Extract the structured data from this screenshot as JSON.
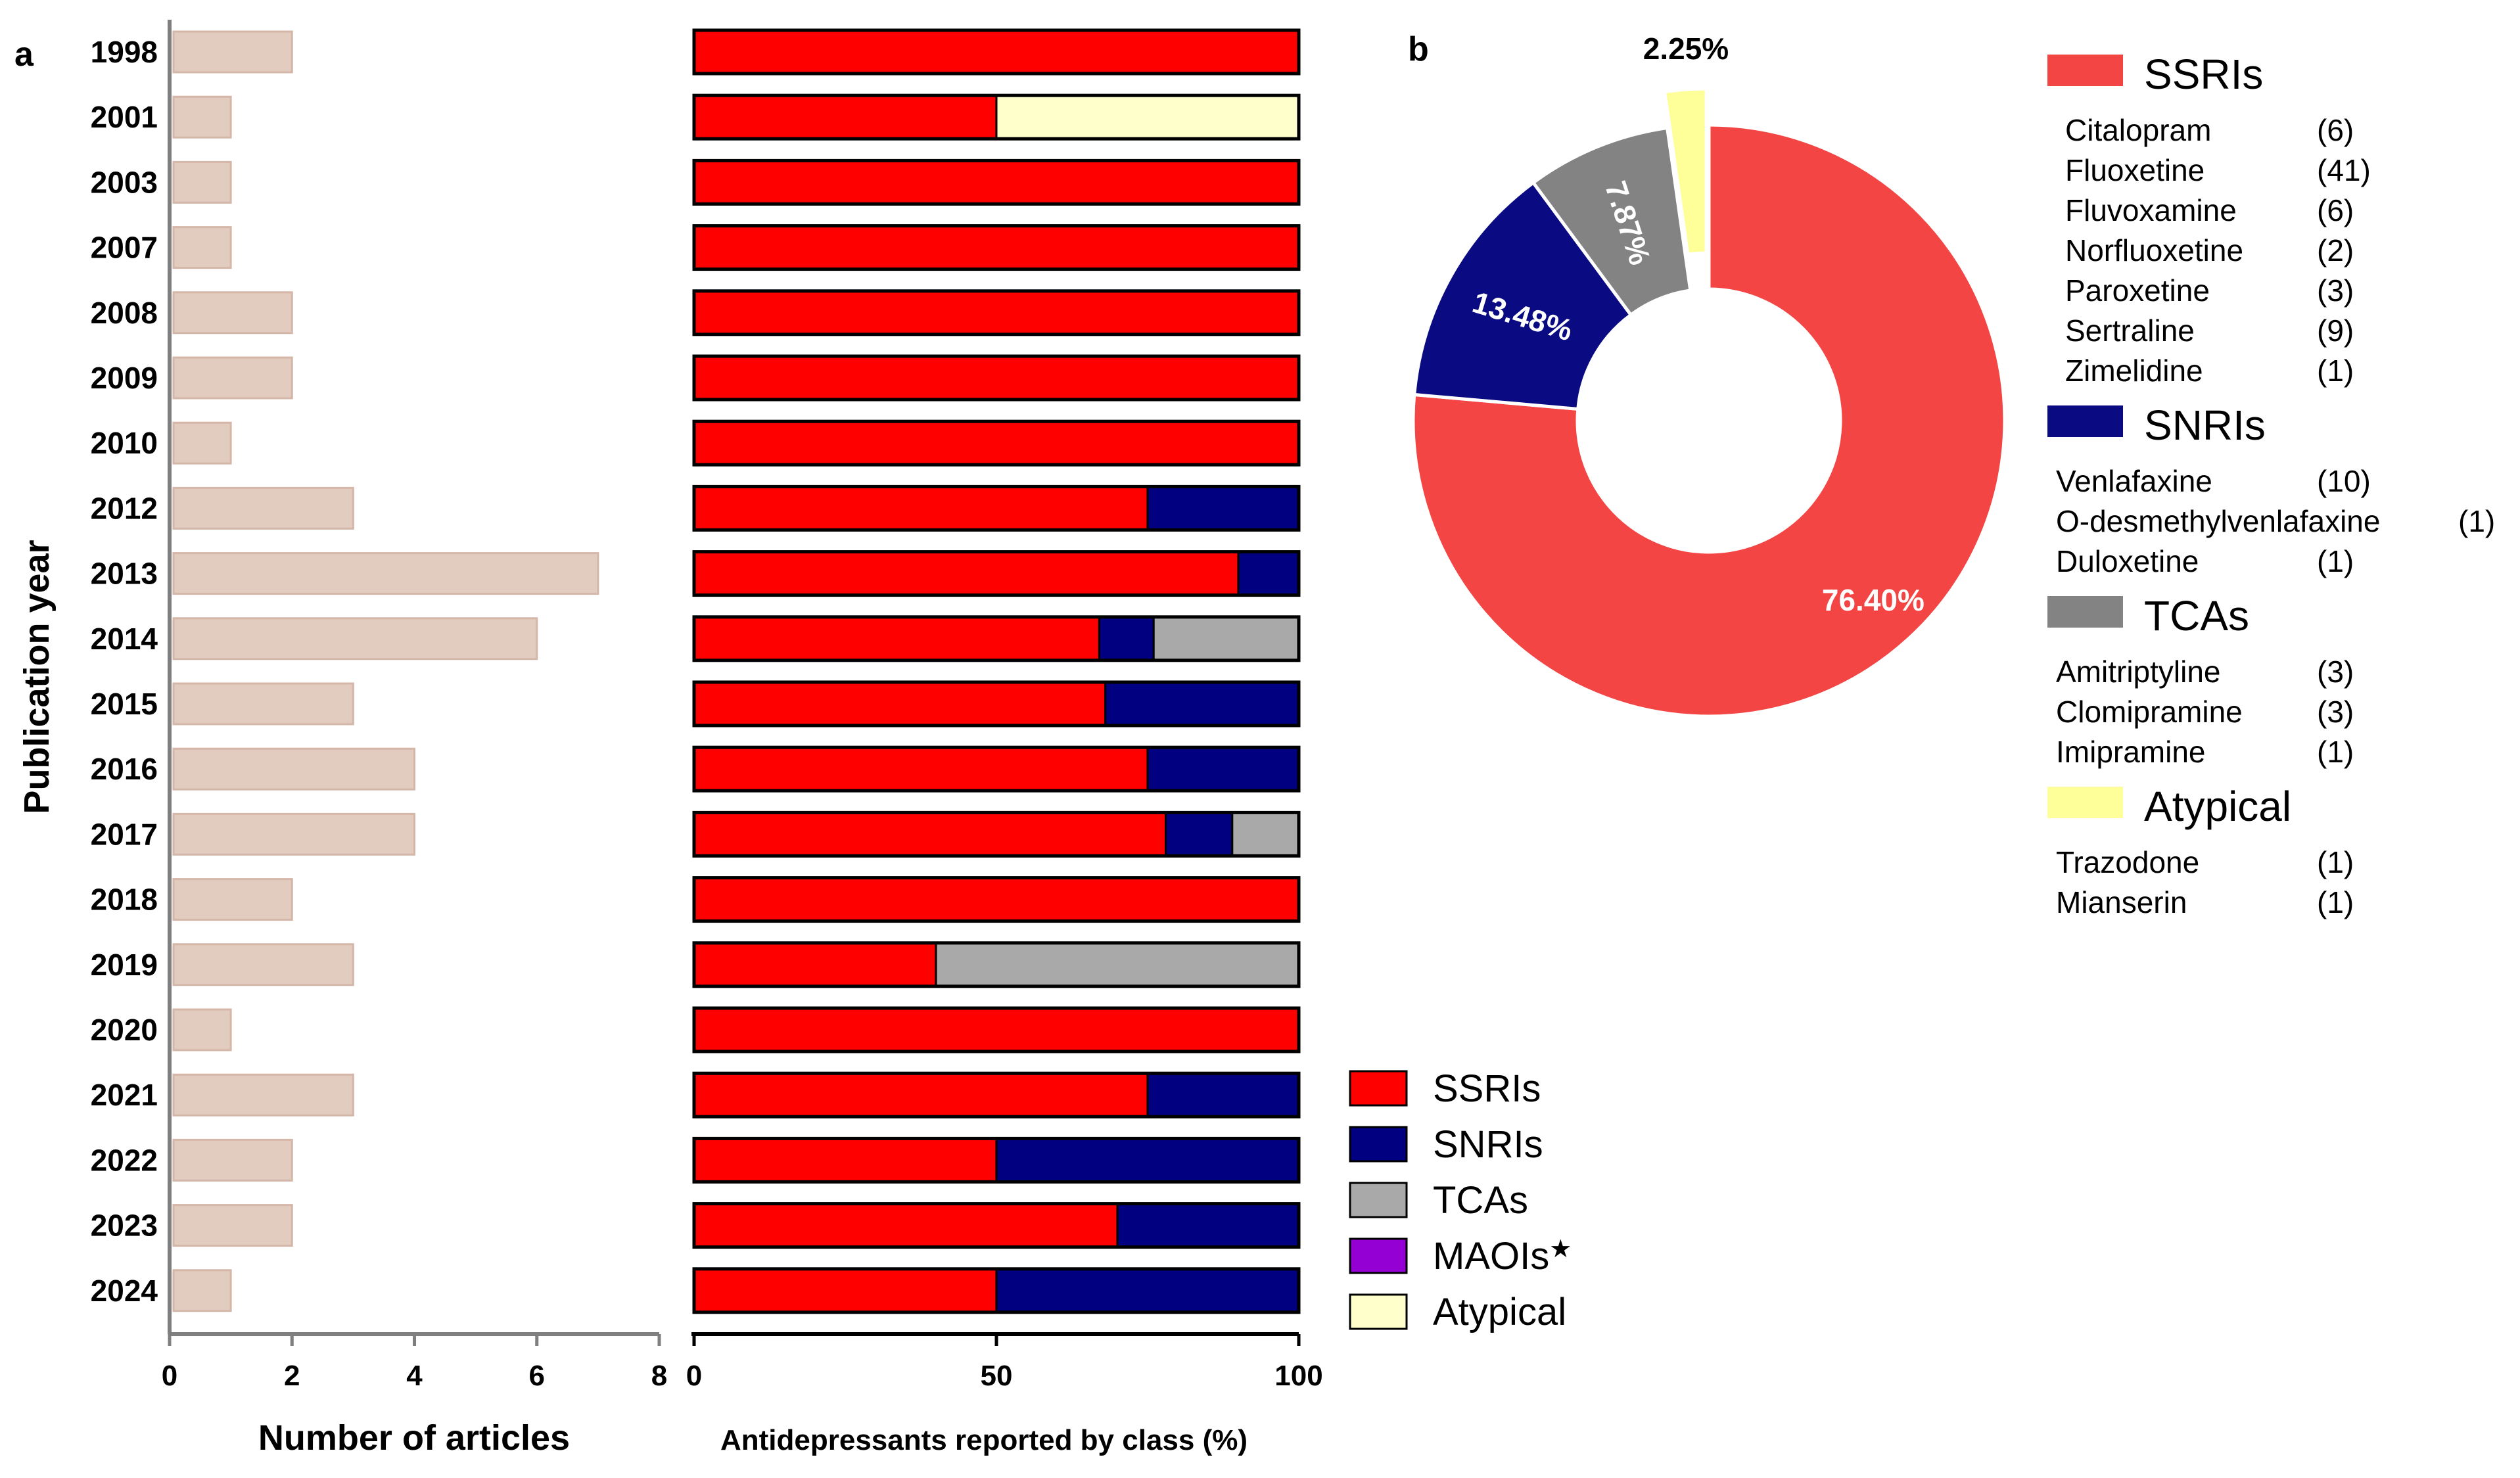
{
  "colors": {
    "SSRIs": "#ff0000",
    "SNRIs": "#000080",
    "TCAs": "#a9a9a9",
    "MAOIs": "#9400d3",
    "Atypical": "#ffffcc",
    "articles_bar": "#e2cbbf",
    "pie_SSRIs": "#f44545",
    "pie_SNRIs": "#0a0a82",
    "pie_TCAs": "#838383",
    "pie_Atypical": "#ffff99"
  },
  "panel_a_label": "a",
  "panel_b_label": "b",
  "chart_data": [
    {
      "type": "bar",
      "orientation": "horizontal",
      "categories": [
        "1998",
        "2001",
        "2003",
        "2007",
        "2008",
        "2009",
        "2010",
        "2012",
        "2013",
        "2014",
        "2015",
        "2016",
        "2017",
        "2018",
        "2019",
        "2020",
        "2021",
        "2022",
        "2023",
        "2024"
      ],
      "values": [
        2,
        1,
        1,
        1,
        2,
        2,
        1,
        3,
        7,
        6,
        3,
        4,
        4,
        2,
        3,
        1,
        3,
        2,
        2,
        1
      ],
      "xlabel": "Number of articles",
      "ylabel": "Publication year",
      "xlim": [
        0,
        8
      ],
      "xticks": [
        0,
        2,
        4,
        6,
        8
      ]
    },
    {
      "type": "bar",
      "orientation": "horizontal",
      "stacked": true,
      "categories": [
        "1998",
        "2001",
        "2003",
        "2007",
        "2008",
        "2009",
        "2010",
        "2012",
        "2013",
        "2014",
        "2015",
        "2016",
        "2017",
        "2018",
        "2019",
        "2020",
        "2021",
        "2022",
        "2023",
        "2024"
      ],
      "series": [
        {
          "name": "SSRIs",
          "values": [
            100,
            50,
            100,
            100,
            100,
            100,
            100,
            75,
            90,
            67,
            68,
            75,
            78,
            100,
            40,
            100,
            75,
            50,
            70,
            50
          ]
        },
        {
          "name": "SNRIs",
          "values": [
            0,
            0,
            0,
            0,
            0,
            0,
            0,
            25,
            10,
            9,
            32,
            25,
            11,
            0,
            0,
            0,
            25,
            50,
            30,
            50
          ]
        },
        {
          "name": "TCAs",
          "values": [
            0,
            0,
            0,
            0,
            0,
            0,
            0,
            0,
            0,
            24,
            0,
            0,
            11,
            0,
            60,
            0,
            0,
            0,
            0,
            0
          ]
        },
        {
          "name": "MAOIs★",
          "values": [
            0,
            0,
            0,
            0,
            0,
            0,
            0,
            0,
            0,
            0,
            0,
            0,
            0,
            0,
            0,
            0,
            0,
            0,
            0,
            0
          ]
        },
        {
          "name": "Atypical",
          "values": [
            0,
            50,
            0,
            0,
            0,
            0,
            0,
            0,
            0,
            0,
            0,
            0,
            0,
            0,
            0,
            0,
            0,
            0,
            0,
            0
          ]
        }
      ],
      "xlabel": "Antidepressants reported by class (%)",
      "xlim": [
        0,
        100
      ],
      "xticks": [
        0,
        50,
        100
      ],
      "legend": [
        "SSRIs",
        "SNRIs",
        "TCAs",
        "MAOIs",
        "Atypical"
      ],
      "legend_star": "★",
      "legend_position": "bottom-right"
    },
    {
      "type": "pie",
      "donut": true,
      "labels": [
        "SSRIs",
        "SNRIs",
        "TCAs",
        "Atypical"
      ],
      "values": [
        76.4,
        13.48,
        7.87,
        2.25
      ],
      "value_labels": [
        "76.40%",
        "13.48%",
        "7.87%",
        "2.25%"
      ],
      "exploded": [
        "Atypical"
      ]
    }
  ],
  "drug_legend": [
    {
      "class": "SSRIs",
      "drugs": [
        {
          "name": "Citalopram",
          "count": "(6)"
        },
        {
          "name": "Fluoxetine",
          "count": "(41)"
        },
        {
          "name": "Fluvoxamine",
          "count": "(6)"
        },
        {
          "name": "Norfluoxetine",
          "count": "(2)"
        },
        {
          "name": "Paroxetine",
          "count": "(3)"
        },
        {
          "name": "Sertraline",
          "count": "(9)"
        },
        {
          "name": "Zimelidine",
          "count": "(1)"
        }
      ]
    },
    {
      "class": "SNRIs",
      "drugs": [
        {
          "name": "Venlafaxine",
          "count": "(10)"
        },
        {
          "name": "O-desmethylvenlafaxine",
          "count": "(1)"
        },
        {
          "name": "Duloxetine",
          "count": "(1)"
        }
      ]
    },
    {
      "class": "TCAs",
      "drugs": [
        {
          "name": "Amitriptyline",
          "count": "(3)"
        },
        {
          "name": "Clomipramine",
          "count": "(3)"
        },
        {
          "name": "Imipramine",
          "count": "(1)"
        }
      ]
    },
    {
      "class": "Atypical",
      "drugs": [
        {
          "name": "Trazodone",
          "count": "(1)"
        },
        {
          "name": "Mianserin",
          "count": "(1)"
        }
      ]
    }
  ]
}
